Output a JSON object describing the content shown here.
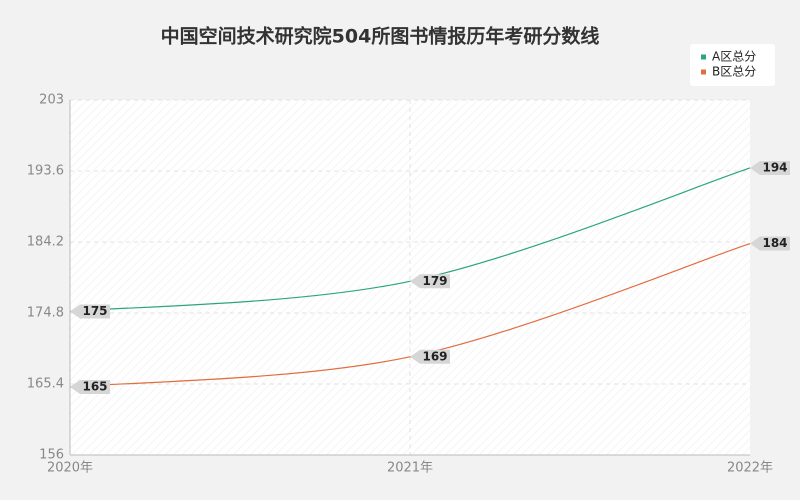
{
  "chart_data": {
    "type": "line",
    "title": "中国空间技术研究院504所图书情报历年考研分数线",
    "categories": [
      "2020年",
      "2021年",
      "2022年"
    ],
    "series": [
      {
        "name": "A区总分",
        "color": "#2aa57f",
        "values": [
          175,
          179,
          194
        ]
      },
      {
        "name": "B区总分",
        "color": "#e26d3f",
        "values": [
          165,
          169,
          184
        ]
      }
    ],
    "ylim": [
      156,
      203
    ],
    "yticks": [
      156,
      165.4,
      174.8,
      184.2,
      193.6,
      203
    ],
    "grid": true,
    "legend": "top-right"
  }
}
